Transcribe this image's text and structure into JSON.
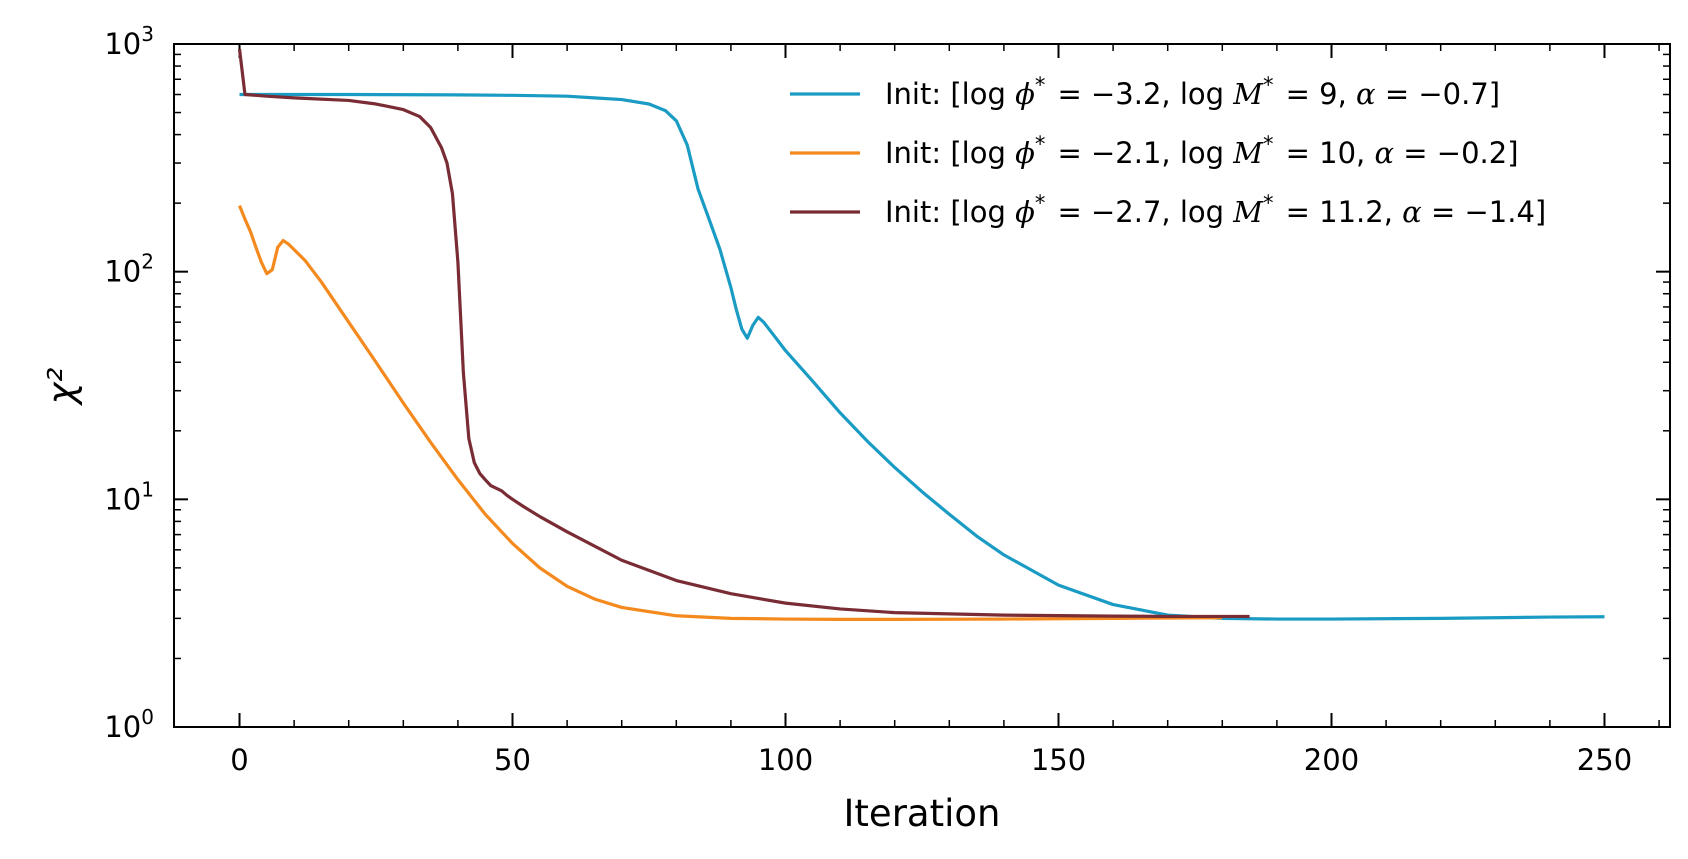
{
  "chart_data": {
    "type": "line",
    "xlabel": "Iteration",
    "ylabel": "χ²",
    "yscale": "log",
    "xlim": [
      -12,
      262
    ],
    "ylim": [
      1,
      1000
    ],
    "x_ticks": [
      0,
      50,
      100,
      150,
      200,
      250
    ],
    "x_tick_labels": [
      "0",
      "50",
      "100",
      "150",
      "200",
      "250"
    ],
    "y_ticks": [
      1,
      10,
      100,
      1000
    ],
    "y_tick_labels": [
      {
        "base": "10",
        "exp": "0"
      },
      {
        "base": "10",
        "exp": "1"
      },
      {
        "base": "10",
        "exp": "2"
      },
      {
        "base": "10",
        "exp": "3"
      }
    ],
    "grid": false,
    "legend_position": "top-right",
    "series": [
      {
        "name": "Init: [log ϕ* = −3.2, log M* = 9, α = −0.7]",
        "legend": {
          "prefix": "Init: [log ",
          "v1": " = −3.2, log ",
          "v2": " = 9, ",
          "v3": " = −0.7]"
        },
        "color": "#1a9bc4",
        "x": [
          0,
          20,
          40,
          50,
          60,
          65,
          70,
          75,
          78,
          80,
          82,
          84,
          86,
          88,
          90,
          91,
          92,
          93,
          94,
          95,
          96,
          98,
          100,
          105,
          110,
          115,
          120,
          125,
          130,
          135,
          140,
          150,
          160,
          170,
          180,
          190,
          200,
          220,
          240,
          250
        ],
        "y": [
          600,
          600,
          598,
          595,
          590,
          580,
          570,
          545,
          510,
          460,
          360,
          230,
          170,
          125,
          85,
          68,
          56,
          51,
          58,
          63,
          60,
          52,
          45,
          33,
          24,
          18,
          13.8,
          10.8,
          8.6,
          6.9,
          5.7,
          4.2,
          3.45,
          3.1,
          3.0,
          2.98,
          2.98,
          3.0,
          3.04,
          3.05
        ]
      },
      {
        "name": "Init: [log ϕ* = −2.1, log M* = 10, α = −0.2]",
        "legend": {
          "prefix": "Init: [log ",
          "v1": " = −2.1, log ",
          "v2": " = 10, ",
          "v3": " = −0.2]"
        },
        "color": "#f4891e",
        "x": [
          0,
          1,
          2,
          3,
          4,
          5,
          6,
          7,
          8,
          9,
          10,
          12,
          15,
          20,
          25,
          30,
          35,
          40,
          45,
          50,
          55,
          60,
          65,
          70,
          80,
          90,
          100,
          110,
          120,
          140,
          160,
          180
        ],
        "y": [
          195,
          170,
          150,
          128,
          110,
          98,
          102,
          128,
          137,
          132,
          125,
          112,
          90,
          60,
          40,
          26.5,
          17.8,
          12.2,
          8.6,
          6.4,
          5.0,
          4.15,
          3.65,
          3.35,
          3.08,
          3.0,
          2.98,
          2.97,
          2.97,
          2.98,
          3.0,
          3.02
        ]
      },
      {
        "name": "Init: [log ϕ* = −2.7, log M* = 11.2, α = −1.4]",
        "legend": {
          "prefix": "Init: [log ",
          "v1": " = −2.7, log ",
          "v2": " = 11.2, ",
          "v3": " = −1.4]"
        },
        "color": "#7a2c34",
        "x": [
          0,
          1,
          5,
          10,
          20,
          25,
          30,
          33,
          35,
          37,
          38,
          39,
          40,
          41,
          42,
          43,
          44,
          45,
          46,
          47,
          48,
          49,
          50,
          52,
          55,
          60,
          70,
          80,
          90,
          100,
          110,
          120,
          140,
          160,
          170,
          185
        ],
        "y": [
          950,
          600,
          590,
          580,
          565,
          545,
          515,
          480,
          430,
          350,
          300,
          220,
          110,
          36,
          18.5,
          14.5,
          13,
          12.2,
          11.5,
          11.2,
          10.9,
          10.4,
          10.0,
          9.3,
          8.4,
          7.2,
          5.4,
          4.4,
          3.85,
          3.5,
          3.3,
          3.18,
          3.1,
          3.07,
          3.06,
          3.06
        ]
      }
    ]
  }
}
